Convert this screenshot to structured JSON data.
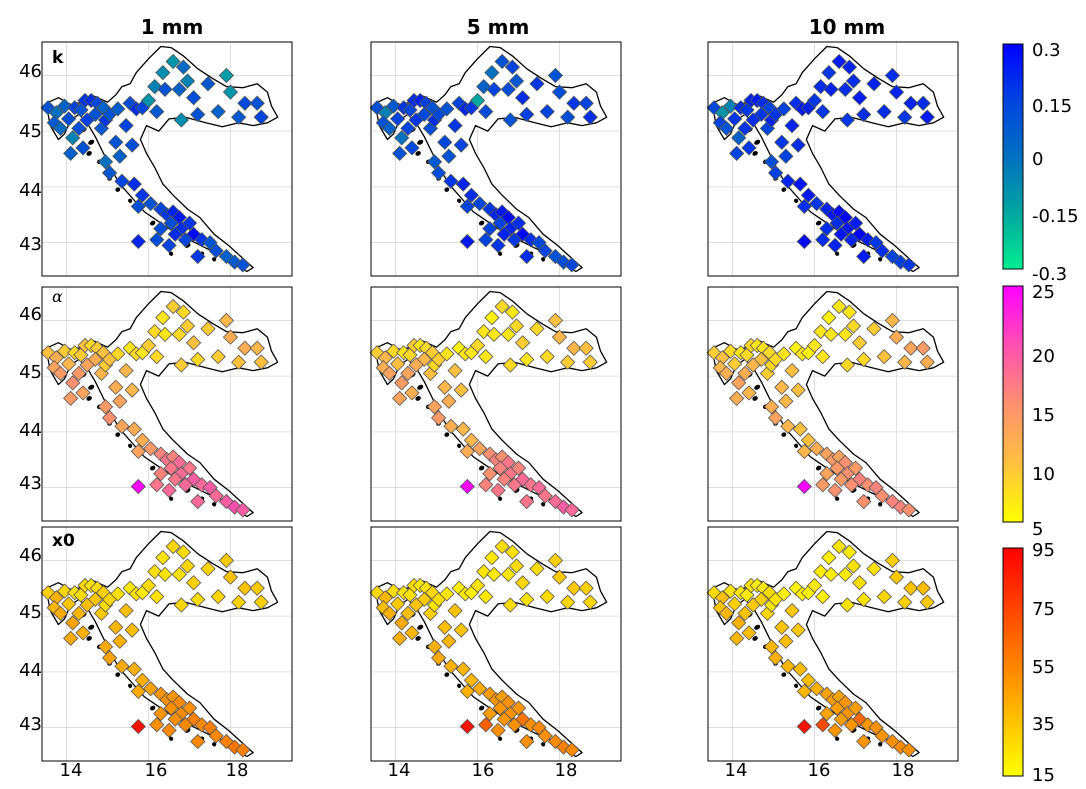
{
  "columns": [
    {
      "title": "1 mm"
    },
    {
      "title": "5 mm"
    },
    {
      "title": "10 mm"
    }
  ],
  "rows": [
    {
      "label": "k",
      "italic": false,
      "colorbar": {
        "ticks": [
          "0.3",
          "0.15",
          "0",
          "-0.15",
          "-0.3"
        ],
        "min": -0.3,
        "max": 0.3,
        "colors": [
          "#00ee90",
          "#00a6a0",
          "#0070c0",
          "#0044e0",
          "#0000ff"
        ]
      }
    },
    {
      "label": "α",
      "italic": true,
      "colorbar": {
        "ticks": [
          "25",
          "20",
          "15",
          "10",
          "5"
        ],
        "min": 5,
        "max": 25,
        "colors": [
          "#ffff00",
          "#ffc040",
          "#ff9070",
          "#ff50b0",
          "#ff00ff"
        ]
      }
    },
    {
      "label": "x0",
      "italic": false,
      "colorbar": {
        "ticks": [
          "95",
          "75",
          "55",
          "35",
          "15"
        ],
        "min": 15,
        "max": 95,
        "colors": [
          "#ffff00",
          "#ffc000",
          "#ff8000",
          "#ff4000",
          "#ff0000"
        ]
      }
    }
  ],
  "axes": {
    "x_ticks": [
      "14",
      "16",
      "18"
    ],
    "y_ticks": [
      "46",
      "45",
      "44",
      "43"
    ],
    "x_values": [
      14,
      16,
      18
    ],
    "y_values": [
      46,
      45,
      44,
      43
    ],
    "lon_range": [
      13.4,
      19.5
    ],
    "lat_range": [
      42.4,
      46.6
    ],
    "grid": true
  },
  "stations": [
    [
      13.55,
      45.42
    ],
    [
      13.75,
      45.33
    ],
    [
      13.95,
      45.45
    ],
    [
      14.05,
      45.22
    ],
    [
      13.7,
      45.15
    ],
    [
      13.85,
      45.05
    ],
    [
      14.15,
      44.88
    ],
    [
      14.2,
      45.42
    ],
    [
      14.35,
      45.38
    ],
    [
      14.45,
      45.55
    ],
    [
      14.6,
      45.55
    ],
    [
      14.75,
      45.5
    ],
    [
      14.9,
      45.42
    ],
    [
      14.7,
      45.3
    ],
    [
      14.5,
      45.2
    ],
    [
      14.3,
      45.05
    ],
    [
      14.85,
      45.05
    ],
    [
      14.95,
      45.2
    ],
    [
      15.05,
      45.3
    ],
    [
      15.25,
      45.4
    ],
    [
      15.55,
      45.5
    ],
    [
      15.7,
      45.4
    ],
    [
      15.85,
      45.42
    ],
    [
      16.0,
      45.55
    ],
    [
      16.15,
      45.8
    ],
    [
      16.35,
      46.05
    ],
    [
      16.6,
      46.25
    ],
    [
      16.85,
      46.15
    ],
    [
      16.95,
      45.9
    ],
    [
      16.4,
      45.75
    ],
    [
      16.75,
      45.75
    ],
    [
      17.1,
      45.6
    ],
    [
      17.45,
      45.85
    ],
    [
      17.9,
      46.0
    ],
    [
      18.0,
      45.7
    ],
    [
      18.35,
      45.5
    ],
    [
      18.65,
      45.5
    ],
    [
      18.2,
      45.25
    ],
    [
      18.75,
      45.25
    ],
    [
      17.7,
      45.35
    ],
    [
      17.2,
      45.3
    ],
    [
      16.8,
      45.2
    ],
    [
      16.2,
      45.35
    ],
    [
      15.45,
      45.1
    ],
    [
      15.2,
      44.8
    ],
    [
      15.6,
      44.75
    ],
    [
      15.3,
      44.55
    ],
    [
      14.95,
      44.45
    ],
    [
      15.05,
      44.25
    ],
    [
      15.35,
      44.1
    ],
    [
      15.65,
      44.05
    ],
    [
      15.85,
      43.85
    ],
    [
      15.75,
      43.65
    ],
    [
      16.05,
      43.7
    ],
    [
      16.3,
      43.6
    ],
    [
      16.45,
      43.5
    ],
    [
      16.6,
      43.55
    ],
    [
      16.75,
      43.45
    ],
    [
      16.55,
      43.35
    ],
    [
      16.8,
      43.25
    ],
    [
      17.0,
      43.35
    ],
    [
      17.1,
      43.15
    ],
    [
      16.9,
      43.05
    ],
    [
      16.65,
      43.15
    ],
    [
      16.3,
      43.25
    ],
    [
      17.3,
      43.05
    ],
    [
      17.5,
      43.0
    ],
    [
      17.65,
      42.85
    ],
    [
      17.9,
      42.75
    ],
    [
      18.1,
      42.65
    ],
    [
      18.3,
      42.6
    ],
    [
      15.75,
      43.02
    ],
    [
      16.2,
      43.05
    ],
    [
      16.5,
      42.95
    ],
    [
      17.2,
      42.75
    ],
    [
      14.1,
      44.6
    ],
    [
      14.4,
      44.7
    ]
  ],
  "panel_values": [
    [
      [
        0.1,
        0.0,
        0.05,
        0.12,
        0.08,
        0.02,
        -0.05,
        0.15,
        0.1,
        0.18,
        0.2,
        0.14,
        0.05,
        0.1,
        0.16,
        0.12,
        0.08,
        0.18,
        0.1,
        0.06,
        0.12,
        0.2,
        0.15,
        -0.1,
        -0.05,
        -0.08,
        -0.1,
        0.02,
        -0.05,
        0.1,
        0.05,
        0.12,
        0.08,
        -0.12,
        -0.1,
        0.14,
        0.1,
        0.08,
        0.15,
        0.05,
        0.1,
        -0.08,
        0.08,
        0.15,
        0.1,
        0.12,
        0.05,
        0.0,
        0.08,
        0.15,
        0.2,
        0.18,
        0.12,
        0.1,
        0.15,
        0.18,
        0.22,
        0.25,
        0.12,
        0.2,
        0.18,
        0.28,
        0.15,
        0.2,
        0.12,
        0.18,
        0.1,
        0.12,
        0.05,
        0.08,
        0.1,
        0.22,
        0.12,
        0.15,
        0.18,
        0.05,
        0.1
      ],
      [
        0.12,
        -0.05,
        0.08,
        0.15,
        0.1,
        0.05,
        0.0,
        0.18,
        0.14,
        0.2,
        0.22,
        0.16,
        0.1,
        0.14,
        0.18,
        0.15,
        0.12,
        0.2,
        0.14,
        0.1,
        0.15,
        0.22,
        0.18,
        -0.15,
        0.05,
        0.0,
        0.1,
        0.15,
        0.08,
        0.15,
        0.12,
        0.2,
        0.18,
        0.1,
        0.12,
        0.18,
        0.15,
        0.12,
        0.2,
        0.15,
        0.16,
        0.1,
        0.12,
        0.18,
        0.14,
        0.15,
        0.1,
        0.08,
        0.12,
        0.18,
        0.22,
        0.2,
        0.15,
        0.14,
        0.18,
        0.22,
        0.25,
        0.28,
        0.15,
        0.22,
        0.2,
        0.28,
        0.18,
        0.22,
        0.15,
        0.2,
        0.14,
        0.15,
        0.1,
        0.12,
        0.14,
        0.25,
        0.15,
        0.18,
        0.2,
        0.1,
        0.14
      ],
      [
        0.14,
        -0.1,
        -0.05,
        0.18,
        0.15,
        0.1,
        0.05,
        0.2,
        0.18,
        0.22,
        0.24,
        0.2,
        0.15,
        0.18,
        0.2,
        0.18,
        0.15,
        0.22,
        0.18,
        0.15,
        0.2,
        0.24,
        0.22,
        0.18,
        0.2,
        0.18,
        0.24,
        0.22,
        0.2,
        0.22,
        0.2,
        0.24,
        0.22,
        0.2,
        0.22,
        0.22,
        0.2,
        0.18,
        0.24,
        0.2,
        0.2,
        0.18,
        0.18,
        0.22,
        0.18,
        0.2,
        0.15,
        0.12,
        0.16,
        0.22,
        0.25,
        0.24,
        0.2,
        0.18,
        0.22,
        0.25,
        0.28,
        0.3,
        0.2,
        0.25,
        0.24,
        0.3,
        0.22,
        0.25,
        0.2,
        0.24,
        0.18,
        0.2,
        0.15,
        0.16,
        0.18,
        0.28,
        0.2,
        0.22,
        0.24,
        0.15,
        0.18
      ]
    ],
    [
      [
        10,
        12,
        9,
        11,
        13,
        14,
        15,
        8,
        9,
        10,
        8,
        9,
        10,
        12,
        13,
        14,
        11,
        9,
        10,
        8,
        7,
        8,
        7,
        9,
        8,
        7,
        9,
        8,
        9,
        7,
        8,
        10,
        9,
        11,
        12,
        12,
        11,
        10,
        10,
        9,
        8,
        9,
        8,
        11,
        12,
        11,
        13,
        14,
        15,
        13,
        12,
        12,
        13,
        14,
        16,
        17,
        16,
        18,
        17,
        18,
        17,
        19,
        18,
        17,
        16,
        18,
        19,
        18,
        19,
        20,
        19,
        25,
        17,
        18,
        18,
        14,
        13
      ],
      [
        9,
        11,
        8,
        10,
        12,
        13,
        14,
        7,
        8,
        9,
        7,
        8,
        9,
        11,
        12,
        13,
        10,
        8,
        9,
        7,
        6,
        7,
        7,
        8,
        7,
        6,
        8,
        7,
        8,
        7,
        7,
        9,
        8,
        10,
        11,
        11,
        10,
        9,
        9,
        8,
        7,
        8,
        7,
        10,
        11,
        10,
        12,
        13,
        14,
        12,
        11,
        11,
        12,
        13,
        15,
        16,
        15,
        17,
        16,
        17,
        16,
        18,
        17,
        16,
        15,
        17,
        18,
        17,
        18,
        19,
        18,
        25,
        16,
        17,
        17,
        13,
        12
      ],
      [
        9,
        10,
        8,
        9,
        11,
        12,
        13,
        7,
        8,
        8,
        7,
        7,
        8,
        10,
        11,
        12,
        9,
        8,
        8,
        7,
        6,
        7,
        6,
        7,
        7,
        6,
        7,
        7,
        8,
        7,
        7,
        9,
        9,
        11,
        12,
        13,
        14,
        11,
        12,
        10,
        8,
        8,
        7,
        10,
        11,
        10,
        11,
        12,
        13,
        11,
        10,
        10,
        11,
        12,
        13,
        14,
        13,
        15,
        14,
        15,
        14,
        16,
        15,
        14,
        13,
        15,
        16,
        15,
        16,
        16,
        15,
        25,
        14,
        15,
        15,
        12,
        11
      ]
    ],
    [
      [
        30,
        40,
        28,
        34,
        38,
        42,
        44,
        25,
        26,
        28,
        24,
        26,
        30,
        34,
        36,
        38,
        32,
        26,
        28,
        24,
        22,
        24,
        22,
        26,
        25,
        24,
        28,
        26,
        28,
        24,
        25,
        30,
        28,
        32,
        34,
        34,
        32,
        30,
        30,
        28,
        26,
        28,
        24,
        36,
        38,
        36,
        40,
        42,
        44,
        42,
        40,
        40,
        42,
        44,
        48,
        50,
        48,
        52,
        50,
        52,
        50,
        55,
        52,
        50,
        48,
        52,
        55,
        52,
        55,
        58,
        55,
        90,
        50,
        52,
        52,
        42,
        40
      ],
      [
        28,
        38,
        26,
        32,
        36,
        40,
        42,
        24,
        24,
        26,
        22,
        24,
        28,
        32,
        34,
        36,
        30,
        24,
        26,
        22,
        20,
        22,
        20,
        24,
        23,
        22,
        26,
        24,
        26,
        22,
        23,
        28,
        26,
        30,
        32,
        32,
        30,
        28,
        28,
        26,
        24,
        26,
        22,
        34,
        36,
        34,
        38,
        40,
        42,
        40,
        38,
        38,
        40,
        42,
        46,
        48,
        46,
        50,
        48,
        50,
        48,
        58,
        50,
        48,
        46,
        50,
        52,
        50,
        52,
        55,
        52,
        90,
        65,
        50,
        50,
        40,
        38
      ],
      [
        26,
        35,
        24,
        30,
        34,
        38,
        40,
        22,
        22,
        24,
        20,
        22,
        26,
        30,
        32,
        34,
        28,
        22,
        24,
        20,
        18,
        20,
        18,
        22,
        21,
        20,
        24,
        22,
        24,
        20,
        21,
        26,
        24,
        30,
        32,
        34,
        36,
        30,
        32,
        28,
        24,
        24,
        20,
        32,
        34,
        32,
        36,
        38,
        40,
        38,
        36,
        36,
        38,
        40,
        44,
        46,
        44,
        48,
        46,
        48,
        46,
        62,
        48,
        46,
        44,
        48,
        50,
        48,
        50,
        52,
        50,
        90,
        72,
        48,
        48,
        38,
        36
      ]
    ]
  ]
}
